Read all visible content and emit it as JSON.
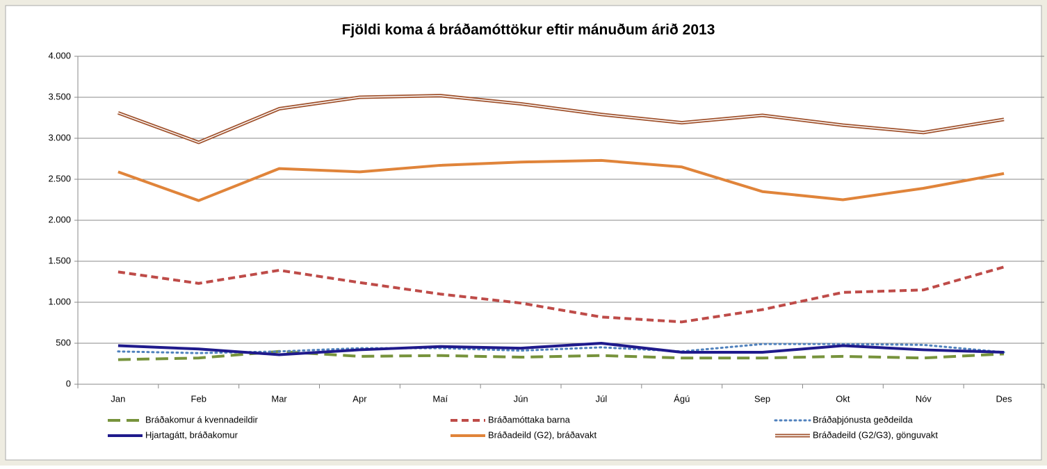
{
  "chart_data": {
    "type": "line",
    "title": "Fjöldi koma á bráðamóttökur eftir mánuðum árið 2013",
    "categories": [
      "Jan",
      "Feb",
      "Mar",
      "Apr",
      "Maí",
      "Jún",
      "Júl",
      "Ágú",
      "Sep",
      "Okt",
      "Nóv",
      "Des"
    ],
    "ylim": [
      0,
      4000
    ],
    "yticks": [
      0,
      500,
      {
        "value": 1000,
        "label": "1.000"
      },
      {
        "value": 1500,
        "label": "1.500"
      },
      {
        "value": 2000,
        "label": "2.000"
      },
      {
        "value": 2500,
        "label": "2.500"
      },
      {
        "value": 3000,
        "label": "3.000"
      },
      {
        "value": 3500,
        "label": "3.500"
      },
      {
        "value": 4000,
        "label": "4.000"
      }
    ],
    "grid": true,
    "legend": "bottom",
    "series": [
      {
        "name": "Bráðakomur á kvennadeildir",
        "color": "#77933c",
        "dash": "longdash",
        "values": [
          300,
          320,
          400,
          340,
          350,
          330,
          350,
          320,
          320,
          340,
          320,
          370
        ]
      },
      {
        "name": "Bráðamóttaka barna",
        "color": "#be4b48",
        "dash": "dashed",
        "values": [
          1370,
          1230,
          1390,
          1240,
          1100,
          990,
          820,
          760,
          910,
          1120,
          1150,
          1430
        ]
      },
      {
        "name": "Bráðaþjónusta geðdeilda",
        "color": "#4f81bd",
        "dash": "dotted",
        "values": [
          400,
          380,
          400,
          440,
          440,
          410,
          450,
          400,
          490,
          490,
          480,
          390
        ]
      },
      {
        "name": "Hjartagátt, bráðakomur",
        "color": "#1f1a8c",
        "dash": "solid",
        "values": [
          470,
          430,
          360,
          420,
          460,
          440,
          500,
          390,
          390,
          470,
          420,
          390
        ]
      },
      {
        "name": "Bráðadeild (G2), bráðavakt",
        "color": "#e0843a",
        "dash": "solid",
        "values": [
          2590,
          2240,
          2630,
          2590,
          2670,
          2710,
          2730,
          2650,
          2350,
          2250,
          2390,
          2570
        ]
      },
      {
        "name": "Bráðadeild (G2/G3), gönguvakt",
        "color": "#a0522d",
        "dash": "double",
        "values": [
          3310,
          2950,
          3360,
          3500,
          3520,
          3420,
          3290,
          3190,
          3280,
          3160,
          3070,
          3230
        ]
      }
    ]
  }
}
